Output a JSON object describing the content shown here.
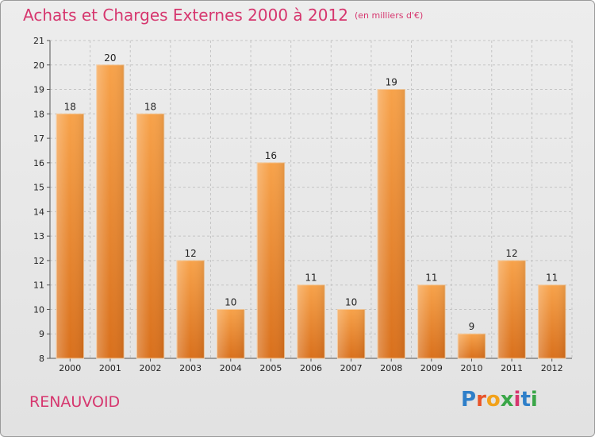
{
  "header": {
    "title": "Achats et Charges Externes 2000 à 2012",
    "unit": "(en milliers d'€)"
  },
  "footer": {
    "town": "RENAUVOID",
    "logo_letters": [
      "P",
      "r",
      "o",
      "x",
      "i",
      "t",
      "i"
    ],
    "logo_colors": [
      "#2e7fc9",
      "#e8542a",
      "#f2a21b",
      "#3aa648",
      "#d6366e",
      "#2e7fc9",
      "#3aa648"
    ]
  },
  "colors": {
    "bar_light": "#f7a24a",
    "bar_dark": "#d9701c",
    "title": "#d6366e"
  },
  "chart_data": {
    "type": "bar",
    "title": "Achats et Charges Externes 2000 à 2012",
    "subtitle": "(en milliers d'€)",
    "categories": [
      "2000",
      "2001",
      "2002",
      "2003",
      "2004",
      "2005",
      "2006",
      "2007",
      "2008",
      "2009",
      "2010",
      "2011",
      "2012"
    ],
    "values": [
      18,
      20,
      18,
      12,
      10,
      16,
      11,
      10,
      19,
      11,
      9,
      12,
      11
    ],
    "ylim": [
      8,
      21
    ],
    "yticks": [
      8,
      9,
      10,
      11,
      12,
      13,
      14,
      15,
      16,
      17,
      18,
      19,
      20,
      21
    ],
    "grid": true,
    "data_labels": true
  }
}
